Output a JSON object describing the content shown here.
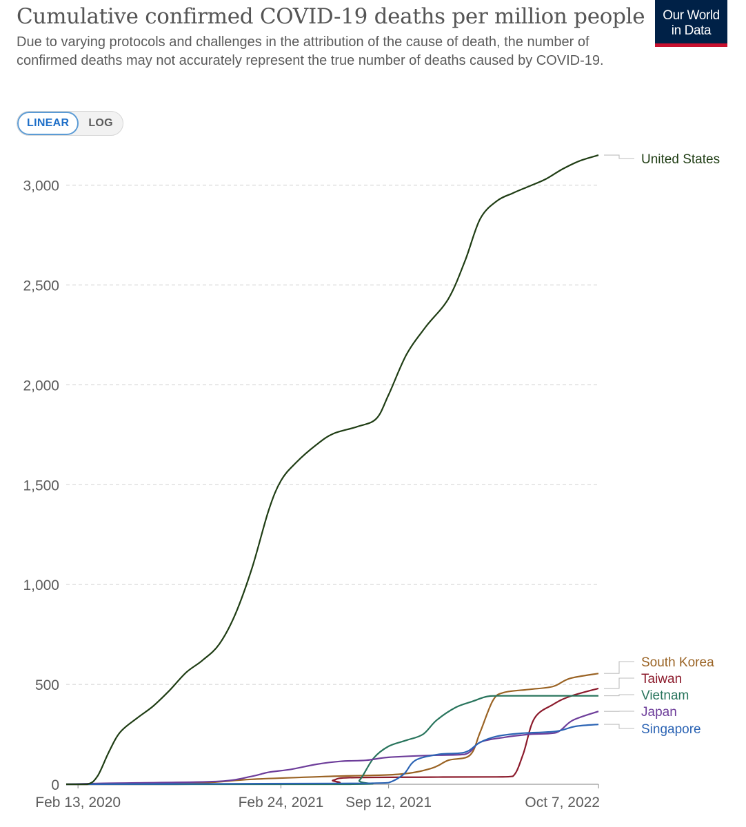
{
  "header": {
    "title": "Cumulative confirmed COVID-19 deaths per million people",
    "subtitle": "Due to varying protocols and challenges in the attribution of the cause of death, the number of confirmed deaths may not accurately represent the true number of deaths caused by COVID-19.",
    "logo_line1": "Our World",
    "logo_line2": "in Data",
    "logo_bg": "#002147",
    "logo_accent": "#c8102e"
  },
  "controls": {
    "linear_label": "LINEAR",
    "log_label": "LOG",
    "active": "linear"
  },
  "chart_data": {
    "type": "line",
    "title": "Cumulative confirmed COVID-19 deaths per million people",
    "xlabel": "",
    "ylabel": "",
    "x_ticks": [
      "Feb 13, 2020",
      "Feb 24, 2021",
      "Sep 12, 2021",
      "Oct 7, 2022"
    ],
    "x_range": [
      "2020-01-22",
      "2022-10-07"
    ],
    "y_ticks": [
      "0",
      "500",
      "1,000",
      "1,500",
      "2,000",
      "2,500",
      "3,000"
    ],
    "ylim": [
      0,
      3200
    ],
    "grid": "horizontal dashed",
    "legend": "line-end labels, right",
    "series": [
      {
        "name": "United States",
        "color": "#1f3d14",
        "points": [
          [
            "2020-01-22",
            0
          ],
          [
            "2020-03-01",
            0
          ],
          [
            "2020-03-20",
            40
          ],
          [
            "2020-04-10",
            160
          ],
          [
            "2020-05-01",
            260
          ],
          [
            "2020-06-01",
            330
          ],
          [
            "2020-07-01",
            390
          ],
          [
            "2020-08-01",
            470
          ],
          [
            "2020-09-01",
            560
          ],
          [
            "2020-10-01",
            620
          ],
          [
            "2020-11-01",
            700
          ],
          [
            "2020-12-01",
            850
          ],
          [
            "2021-01-01",
            1080
          ],
          [
            "2021-02-01",
            1370
          ],
          [
            "2021-02-24",
            1520
          ],
          [
            "2021-03-24",
            1610
          ],
          [
            "2021-05-01",
            1700
          ],
          [
            "2021-06-01",
            1755
          ],
          [
            "2021-07-15",
            1790
          ],
          [
            "2021-08-20",
            1830
          ],
          [
            "2021-09-12",
            1950
          ],
          [
            "2021-10-15",
            2150
          ],
          [
            "2021-11-20",
            2290
          ],
          [
            "2022-01-01",
            2430
          ],
          [
            "2022-02-01",
            2620
          ],
          [
            "2022-03-01",
            2830
          ],
          [
            "2022-04-01",
            2920
          ],
          [
            "2022-05-01",
            2960
          ],
          [
            "2022-06-01",
            2995
          ],
          [
            "2022-07-01",
            3030
          ],
          [
            "2022-08-01",
            3080
          ],
          [
            "2022-09-01",
            3120
          ],
          [
            "2022-10-07",
            3150
          ]
        ]
      },
      {
        "name": "South Korea",
        "color": "#9a6324",
        "points": [
          [
            "2020-01-22",
            0
          ],
          [
            "2020-03-01",
            0
          ],
          [
            "2020-05-01",
            5
          ],
          [
            "2020-10-01",
            8
          ],
          [
            "2021-01-01",
            25
          ],
          [
            "2021-06-01",
            40
          ],
          [
            "2021-10-01",
            50
          ],
          [
            "2021-12-01",
            80
          ],
          [
            "2022-01-01",
            120
          ],
          [
            "2022-02-10",
            145
          ],
          [
            "2022-03-01",
            260
          ],
          [
            "2022-03-25",
            420
          ],
          [
            "2022-04-15",
            460
          ],
          [
            "2022-06-01",
            475
          ],
          [
            "2022-07-15",
            490
          ],
          [
            "2022-08-15",
            530
          ],
          [
            "2022-10-07",
            555
          ]
        ]
      },
      {
        "name": "Taiwan",
        "color": "#8b1a2b",
        "points": [
          [
            "2020-01-22",
            0
          ],
          [
            "2021-05-01",
            1
          ],
          [
            "2021-06-01",
            20
          ],
          [
            "2021-07-01",
            33
          ],
          [
            "2021-12-01",
            36
          ],
          [
            "2022-04-01",
            37
          ],
          [
            "2022-05-01",
            40
          ],
          [
            "2022-05-20",
            150
          ],
          [
            "2022-06-10",
            330
          ],
          [
            "2022-07-15",
            400
          ],
          [
            "2022-08-15",
            440
          ],
          [
            "2022-10-07",
            480
          ]
        ]
      },
      {
        "name": "Vietnam",
        "color": "#28745c",
        "points": [
          [
            "2020-01-22",
            0
          ],
          [
            "2021-07-01",
            0
          ],
          [
            "2021-07-20",
            20
          ],
          [
            "2021-08-15",
            130
          ],
          [
            "2021-09-12",
            190
          ],
          [
            "2021-10-15",
            220
          ],
          [
            "2021-11-15",
            250
          ],
          [
            "2021-12-10",
            320
          ],
          [
            "2022-01-15",
            385
          ],
          [
            "2022-02-15",
            415
          ],
          [
            "2022-03-15",
            440
          ],
          [
            "2022-04-15",
            443
          ],
          [
            "2022-10-07",
            443
          ]
        ]
      },
      {
        "name": "Japan",
        "color": "#6d3d9a",
        "points": [
          [
            "2020-01-22",
            0
          ],
          [
            "2020-04-01",
            5
          ],
          [
            "2020-06-01",
            7
          ],
          [
            "2020-11-01",
            15
          ],
          [
            "2021-01-01",
            40
          ],
          [
            "2021-02-01",
            60
          ],
          [
            "2021-03-15",
            75
          ],
          [
            "2021-05-01",
            100
          ],
          [
            "2021-06-15",
            115
          ],
          [
            "2021-08-01",
            120
          ],
          [
            "2021-09-12",
            135
          ],
          [
            "2021-12-01",
            145
          ],
          [
            "2022-02-01",
            150
          ],
          [
            "2022-03-01",
            210
          ],
          [
            "2022-04-15",
            235
          ],
          [
            "2022-06-01",
            250
          ],
          [
            "2022-07-20",
            258
          ],
          [
            "2022-08-20",
            320
          ],
          [
            "2022-10-07",
            365
          ]
        ]
      },
      {
        "name": "Singapore",
        "color": "#2c64b4",
        "points": [
          [
            "2020-01-22",
            0
          ],
          [
            "2021-06-01",
            4
          ],
          [
            "2021-08-20",
            6
          ],
          [
            "2021-09-12",
            8
          ],
          [
            "2021-10-10",
            50
          ],
          [
            "2021-11-01",
            120
          ],
          [
            "2021-12-15",
            150
          ],
          [
            "2022-02-01",
            160
          ],
          [
            "2022-03-01",
            210
          ],
          [
            "2022-04-01",
            240
          ],
          [
            "2022-05-15",
            255
          ],
          [
            "2022-07-20",
            265
          ],
          [
            "2022-08-25",
            290
          ],
          [
            "2022-10-07",
            300
          ]
        ]
      }
    ]
  }
}
